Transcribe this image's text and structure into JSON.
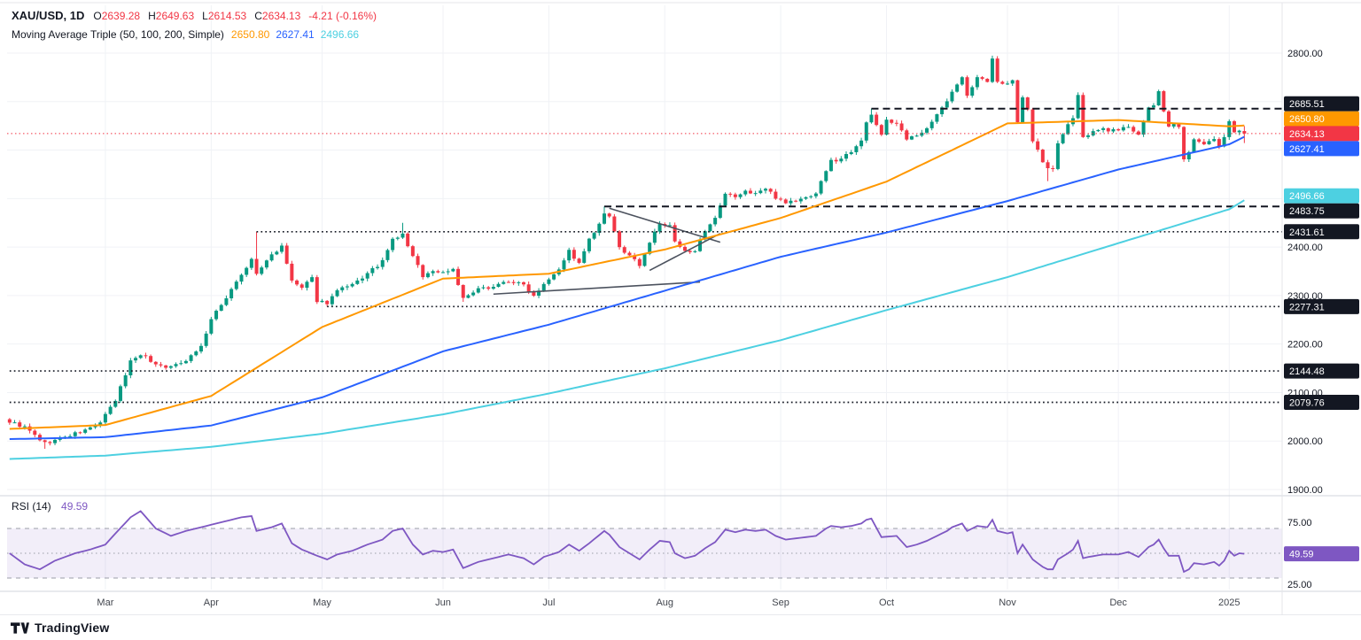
{
  "legend": {
    "symbol": "XAU/USD, 1D",
    "ohlc": [
      {
        "label": "O",
        "value": "2639.28"
      },
      {
        "label": "H",
        "value": "2649.63"
      },
      {
        "label": "L",
        "value": "2614.53"
      },
      {
        "label": "C",
        "value": "2634.13"
      }
    ],
    "change": "-4.21 (-0.16%)"
  },
  "indicator": {
    "title": "Moving Average Triple (50, 100, 200, Simple)",
    "values": [
      {
        "value": "2650.80",
        "color": "#FF9800"
      },
      {
        "value": "2627.41",
        "color": "#2962FF"
      },
      {
        "value": "2496.66",
        "color": "#4DD0E1"
      }
    ]
  },
  "rsi_legend": {
    "title": "RSI (14)",
    "value": "49.59"
  },
  "footer": {
    "brand": "TradingView"
  },
  "chart_data": {
    "type": "candlestick",
    "symbol": "XAU/USD",
    "interval": "1D",
    "total_days": 253,
    "candle_days": 246,
    "colors": {
      "up": "#089981",
      "down": "#F23645",
      "grid": "#F0F2F6",
      "level": "#131722",
      "trendline": "#4C525E",
      "separator": "#D1D4DC",
      "axis_text": "#131722",
      "rsi_band": "#9B9EA8",
      "rsi_fill": "rgba(126,87,194,0.1)"
    },
    "x_axis": {
      "ticks": [
        {
          "label": "Mar",
          "day": 19
        },
        {
          "label": "Apr",
          "day": 40
        },
        {
          "label": "May",
          "day": 62
        },
        {
          "label": "Jun",
          "day": 86
        },
        {
          "label": "Jul",
          "day": 107
        },
        {
          "label": "Aug",
          "day": 130
        },
        {
          "label": "Sep",
          "day": 153
        },
        {
          "label": "Oct",
          "day": 174
        },
        {
          "label": "Nov",
          "day": 198
        },
        {
          "label": "Dec",
          "day": 220
        },
        {
          "label": "2025",
          "day": 242
        }
      ]
    },
    "y_axis": {
      "ticks": [
        2800,
        2400,
        2300,
        2200,
        2100,
        2000,
        1900
      ],
      "grid_step": 100,
      "range": [
        1891,
        2809
      ]
    },
    "last_candle": {
      "open": 2639.28,
      "high": 2649.63,
      "low": 2614.53,
      "close": 2634.13
    },
    "current_price": {
      "value": 2634.13,
      "color": "#F23645"
    },
    "price_anchors": [
      [
        0,
        2040
      ],
      [
        3,
        2028
      ],
      [
        7,
        1995
      ],
      [
        11,
        2008
      ],
      [
        15,
        2022
      ],
      [
        18,
        2038
      ],
      [
        21,
        2083
      ],
      [
        24,
        2165
      ],
      [
        26,
        2180
      ],
      [
        29,
        2158
      ],
      [
        32,
        2152
      ],
      [
        35,
        2168
      ],
      [
        38,
        2195
      ],
      [
        40,
        2251
      ],
      [
        42,
        2280
      ],
      [
        45,
        2330
      ],
      [
        47,
        2355
      ],
      [
        48,
        2375
      ],
      [
        49,
        2344
      ],
      [
        52,
        2385
      ],
      [
        54,
        2400
      ],
      [
        56,
        2330
      ],
      [
        58,
        2315
      ],
      [
        60,
        2335
      ],
      [
        61,
        2290
      ],
      [
        63,
        2285
      ],
      [
        65,
        2310
      ],
      [
        68,
        2321
      ],
      [
        71,
        2345
      ],
      [
        74,
        2370
      ],
      [
        76,
        2415
      ],
      [
        78,
        2426
      ],
      [
        80,
        2380
      ],
      [
        82,
        2341
      ],
      [
        84,
        2350
      ],
      [
        86,
        2348
      ],
      [
        88,
        2355
      ],
      [
        90,
        2293
      ],
      [
        93,
        2312
      ],
      [
        96,
        2320
      ],
      [
        99,
        2330
      ],
      [
        102,
        2322
      ],
      [
        104,
        2300
      ],
      [
        106,
        2326
      ],
      [
        109,
        2356
      ],
      [
        111,
        2392
      ],
      [
        113,
        2365
      ],
      [
        115,
        2415
      ],
      [
        117,
        2445
      ],
      [
        118,
        2469
      ],
      [
        119,
        2460
      ],
      [
        121,
        2400
      ],
      [
        123,
        2380
      ],
      [
        125,
        2364
      ],
      [
        127,
        2410
      ],
      [
        129,
        2448
      ],
      [
        131,
        2443
      ],
      [
        132,
        2410
      ],
      [
        134,
        2390
      ],
      [
        136,
        2395
      ],
      [
        138,
        2430
      ],
      [
        140,
        2458
      ],
      [
        142,
        2508
      ],
      [
        144,
        2504
      ],
      [
        146,
        2514
      ],
      [
        148,
        2512
      ],
      [
        150,
        2520
      ],
      [
        152,
        2503
      ],
      [
        154,
        2493
      ],
      [
        156,
        2495
      ],
      [
        158,
        2502
      ],
      [
        160,
        2512
      ],
      [
        162,
        2558
      ],
      [
        163,
        2577
      ],
      [
        165,
        2582
      ],
      [
        167,
        2599
      ],
      [
        169,
        2622
      ],
      [
        170,
        2657
      ],
      [
        171,
        2670
      ],
      [
        173,
        2634
      ],
      [
        174,
        2663
      ],
      [
        176,
        2653
      ],
      [
        178,
        2622
      ],
      [
        180,
        2629
      ],
      [
        182,
        2648
      ],
      [
        184,
        2673
      ],
      [
        186,
        2700
      ],
      [
        187,
        2721
      ],
      [
        189,
        2748
      ],
      [
        190,
        2715
      ],
      [
        192,
        2747
      ],
      [
        194,
        2742
      ],
      [
        195,
        2787
      ],
      [
        196,
        2744
      ],
      [
        197,
        2736
      ],
      [
        199,
        2743
      ],
      [
        200,
        2659
      ],
      [
        201,
        2707
      ],
      [
        202,
        2684
      ],
      [
        203,
        2618
      ],
      [
        204,
        2598
      ],
      [
        205,
        2573
      ],
      [
        206,
        2564
      ],
      [
        207,
        2563
      ],
      [
        208,
        2611
      ],
      [
        210,
        2650
      ],
      [
        211,
        2669
      ],
      [
        212,
        2716
      ],
      [
        213,
        2626
      ],
      [
        214,
        2633
      ],
      [
        217,
        2643
      ],
      [
        220,
        2639
      ],
      [
        222,
        2650
      ],
      [
        224,
        2633
      ],
      [
        226,
        2686
      ],
      [
        227,
        2694
      ],
      [
        228,
        2718
      ],
      [
        229,
        2681
      ],
      [
        230,
        2648
      ],
      [
        231,
        2653
      ],
      [
        232,
        2646
      ],
      [
        233,
        2584
      ],
      [
        234,
        2594
      ],
      [
        235,
        2622
      ],
      [
        237,
        2613
      ],
      [
        239,
        2621
      ],
      [
        240,
        2606
      ],
      [
        241,
        2624
      ],
      [
        242,
        2658
      ],
      [
        243,
        2639
      ],
      [
        244,
        2641
      ],
      [
        245,
        2634.13
      ]
    ],
    "wick_highs": [
      [
        49,
        2431.61
      ],
      [
        78,
        2450
      ],
      [
        118,
        2483.75
      ],
      [
        171,
        2685.51
      ],
      [
        195,
        2790
      ]
    ],
    "wick_lows": [
      [
        7,
        1984
      ],
      [
        63,
        2277.31
      ],
      [
        90,
        2287
      ],
      [
        206,
        2536
      ],
      [
        233,
        2583
      ]
    ],
    "moving_averages": [
      {
        "name": "SMA 50",
        "length": 50,
        "color": "#FF9800",
        "last_value": 2650.8,
        "anchors": [
          [
            0,
            2025
          ],
          [
            19,
            2033
          ],
          [
            40,
            2093
          ],
          [
            62,
            2235
          ],
          [
            86,
            2335
          ],
          [
            107,
            2345
          ],
          [
            130,
            2395
          ],
          [
            153,
            2460
          ],
          [
            174,
            2535
          ],
          [
            198,
            2655
          ],
          [
            220,
            2662
          ],
          [
            242,
            2649
          ],
          [
            245,
            2650.8
          ]
        ]
      },
      {
        "name": "SMA 100",
        "length": 100,
        "color": "#2962FF",
        "last_value": 2627.41,
        "anchors": [
          [
            0,
            2004
          ],
          [
            19,
            2008
          ],
          [
            40,
            2032
          ],
          [
            62,
            2090
          ],
          [
            86,
            2185
          ],
          [
            107,
            2240
          ],
          [
            130,
            2310
          ],
          [
            153,
            2380
          ],
          [
            174,
            2430
          ],
          [
            198,
            2495
          ],
          [
            220,
            2560
          ],
          [
            242,
            2612
          ],
          [
            245,
            2627.41
          ]
        ]
      },
      {
        "name": "SMA 200",
        "length": 200,
        "color": "#4DD0E1",
        "last_value": 2496.66,
        "anchors": [
          [
            0,
            1963
          ],
          [
            19,
            1970
          ],
          [
            40,
            1988
          ],
          [
            62,
            2015
          ],
          [
            86,
            2055
          ],
          [
            107,
            2098
          ],
          [
            130,
            2150
          ],
          [
            153,
            2208
          ],
          [
            174,
            2270
          ],
          [
            198,
            2338
          ],
          [
            220,
            2408
          ],
          [
            242,
            2478
          ],
          [
            245,
            2496.66
          ]
        ]
      }
    ],
    "levels": [
      {
        "value": 2685.51,
        "style": "dashed",
        "from_day": 171
      },
      {
        "value": 2483.75,
        "style": "dashed",
        "from_day": 118
      },
      {
        "value": 2431.61,
        "style": "dotted",
        "from_day": 49
      },
      {
        "value": 2277.31,
        "style": "dotted",
        "from_day": 63
      },
      {
        "value": 2144.48,
        "style": "dotted",
        "from_day": 0
      },
      {
        "value": 2079.76,
        "style": "dotted",
        "from_day": 0
      }
    ],
    "trendlines": [
      {
        "from": [
          96,
          2303
        ],
        "to": [
          137,
          2328
        ]
      },
      {
        "from": [
          119,
          2480
        ],
        "to": [
          141,
          2410
        ]
      },
      {
        "from": [
          127,
          2352
        ],
        "to": [
          141,
          2428
        ]
      }
    ],
    "rsi": {
      "period": 14,
      "color": "#7E57C2",
      "last_value": 49.59,
      "upper_band": 70,
      "middle_band": 50,
      "lower_band": 30,
      "axis_ticks": [
        75,
        25
      ],
      "anchors": [
        [
          0,
          50
        ],
        [
          3,
          41
        ],
        [
          6,
          37
        ],
        [
          9,
          44
        ],
        [
          13,
          50
        ],
        [
          16,
          53
        ],
        [
          19,
          57
        ],
        [
          21,
          66
        ],
        [
          24,
          79
        ],
        [
          26,
          84
        ],
        [
          29,
          70
        ],
        [
          32,
          64
        ],
        [
          35,
          68
        ],
        [
          38,
          71
        ],
        [
          40,
          73
        ],
        [
          43,
          76
        ],
        [
          46,
          79
        ],
        [
          48,
          80
        ],
        [
          49,
          68
        ],
        [
          52,
          71
        ],
        [
          54,
          74
        ],
        [
          56,
          58
        ],
        [
          58,
          53
        ],
        [
          61,
          48
        ],
        [
          63,
          45
        ],
        [
          65,
          49
        ],
        [
          68,
          52
        ],
        [
          71,
          57
        ],
        [
          74,
          61
        ],
        [
          76,
          68
        ],
        [
          78,
          70
        ],
        [
          80,
          57
        ],
        [
          82,
          49
        ],
        [
          84,
          52
        ],
        [
          86,
          51
        ],
        [
          88,
          53
        ],
        [
          90,
          38
        ],
        [
          93,
          43
        ],
        [
          96,
          46
        ],
        [
          99,
          49
        ],
        [
          102,
          46
        ],
        [
          104,
          41
        ],
        [
          106,
          47
        ],
        [
          109,
          51
        ],
        [
          111,
          57
        ],
        [
          113,
          52
        ],
        [
          115,
          58
        ],
        [
          118,
          68
        ],
        [
          119,
          65
        ],
        [
          121,
          55
        ],
        [
          123,
          50
        ],
        [
          125,
          45
        ],
        [
          127,
          53
        ],
        [
          129,
          60
        ],
        [
          131,
          59
        ],
        [
          132,
          50
        ],
        [
          134,
          46
        ],
        [
          136,
          48
        ],
        [
          138,
          54
        ],
        [
          140,
          59
        ],
        [
          142,
          69
        ],
        [
          144,
          67
        ],
        [
          146,
          69
        ],
        [
          148,
          68
        ],
        [
          150,
          69
        ],
        [
          152,
          64
        ],
        [
          154,
          61
        ],
        [
          156,
          62
        ],
        [
          158,
          63
        ],
        [
          160,
          64
        ],
        [
          162,
          70
        ],
        [
          163,
          72
        ],
        [
          165,
          71
        ],
        [
          167,
          72
        ],
        [
          169,
          74
        ],
        [
          170,
          77
        ],
        [
          171,
          78
        ],
        [
          173,
          63
        ],
        [
          176,
          64
        ],
        [
          178,
          55
        ],
        [
          180,
          57
        ],
        [
          182,
          60
        ],
        [
          184,
          64
        ],
        [
          186,
          68
        ],
        [
          187,
          71
        ],
        [
          189,
          74
        ],
        [
          190,
          68
        ],
        [
          192,
          72
        ],
        [
          194,
          71
        ],
        [
          195,
          77
        ],
        [
          196,
          68
        ],
        [
          198,
          66
        ],
        [
          199,
          67
        ],
        [
          200,
          50
        ],
        [
          201,
          57
        ],
        [
          203,
          45
        ],
        [
          204,
          42
        ],
        [
          205,
          39
        ],
        [
          206,
          37
        ],
        [
          207,
          37
        ],
        [
          208,
          45
        ],
        [
          210,
          50
        ],
        [
          211,
          53
        ],
        [
          212,
          60
        ],
        [
          213,
          46
        ],
        [
          214,
          47
        ],
        [
          217,
          49
        ],
        [
          220,
          49
        ],
        [
          222,
          51
        ],
        [
          224,
          47
        ],
        [
          226,
          55
        ],
        [
          227,
          57
        ],
        [
          228,
          61
        ],
        [
          229,
          54
        ],
        [
          230,
          48
        ],
        [
          232,
          48
        ],
        [
          233,
          35
        ],
        [
          234,
          37
        ],
        [
          235,
          42
        ],
        [
          237,
          41
        ],
        [
          239,
          43
        ],
        [
          240,
          40
        ],
        [
          241,
          44
        ],
        [
          242,
          52
        ],
        [
          243,
          48
        ],
        [
          244,
          50
        ],
        [
          245,
          49.59
        ]
      ]
    }
  }
}
